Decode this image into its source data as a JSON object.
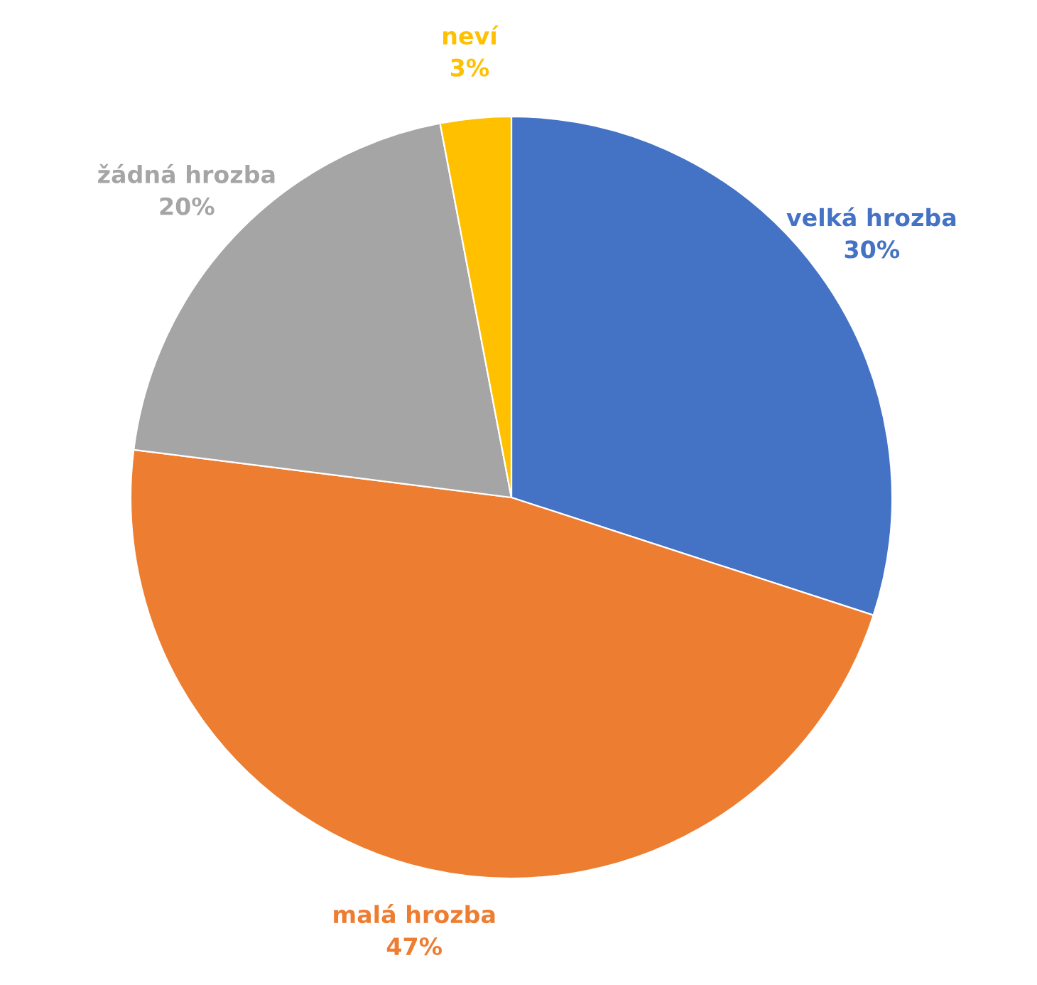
{
  "chart_data": {
    "type": "pie",
    "categories": [
      "velká hrozba",
      "malá hrozba",
      "žádná hrozba",
      "neví"
    ],
    "values": [
      30,
      47,
      20,
      3
    ],
    "value_labels": [
      "30%",
      "47%",
      "20%",
      "3%"
    ],
    "colors": [
      "#4472c4",
      "#ed7d31",
      "#a5a5a5",
      "#ffc000"
    ],
    "legend": false
  }
}
